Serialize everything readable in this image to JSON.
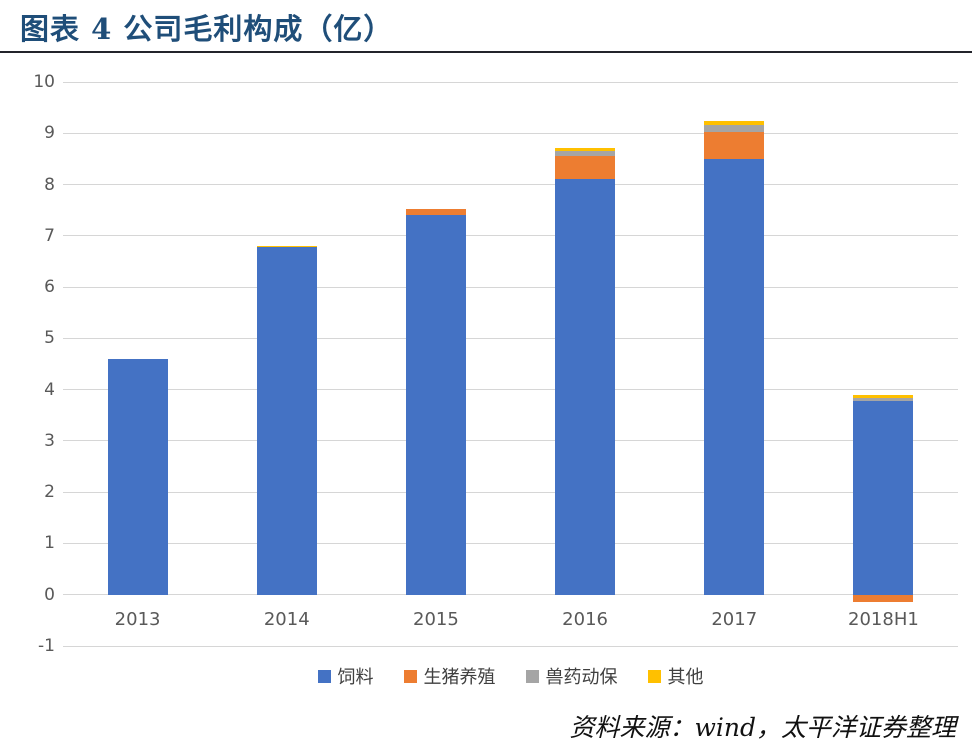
{
  "header": {
    "title": "图表 4 公司毛利构成（亿）"
  },
  "source": {
    "label": "资料来源：wind，太平洋证券整理"
  },
  "colors": {
    "title": "#1f4e79",
    "gridline": "#d6d6d6",
    "axis_text": "#595959",
    "legend_text": "#404040",
    "series_feed": "#4472C4",
    "series_pig": "#ED7D31",
    "series_vet": "#A5A5A5",
    "series_other": "#FFC000"
  },
  "chart_data": {
    "type": "bar",
    "stacked": true,
    "title": "图表 4 公司毛利构成（亿）",
    "categories": [
      "2013",
      "2014",
      "2015",
      "2016",
      "2017",
      "2018H1"
    ],
    "series": [
      {
        "name": "饲料",
        "color": "#4472C4",
        "values": [
          4.6,
          6.78,
          7.4,
          8.1,
          8.5,
          3.78
        ]
      },
      {
        "name": "生猪养殖",
        "color": "#ED7D31",
        "values": [
          0,
          0,
          0.12,
          0.45,
          0.52,
          -0.15
        ]
      },
      {
        "name": "兽药动保",
        "color": "#A5A5A5",
        "values": [
          0,
          0,
          0,
          0.1,
          0.15,
          0.05
        ]
      },
      {
        "name": "其他",
        "color": "#FFC000",
        "values": [
          0,
          0.02,
          0,
          0.06,
          0.06,
          0.06
        ]
      }
    ],
    "xlabel": "",
    "ylabel": "",
    "ylim": [
      -1,
      10
    ],
    "yticks": [
      10,
      9,
      8,
      7,
      6,
      5,
      4,
      3,
      2,
      1,
      0,
      -1
    ],
    "grid": true,
    "legend_position": "bottom"
  }
}
